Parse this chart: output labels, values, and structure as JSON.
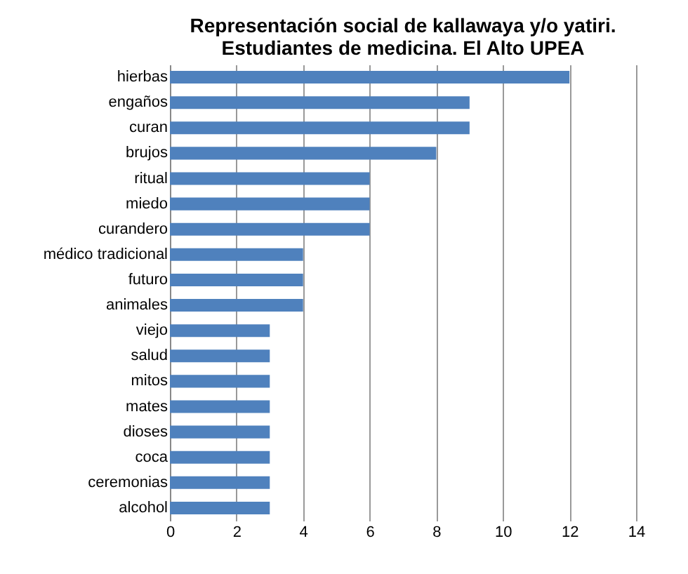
{
  "chart_data": {
    "type": "bar",
    "orientation": "horizontal",
    "title": [
      "Representación social de kallawaya y/o yatiri.",
      "Estudiantes de medicina. El Alto UPEA"
    ],
    "categories": [
      "hierbas",
      "engaños",
      "curan",
      "brujos",
      "ritual",
      "miedo",
      "curandero",
      "médico tradicional",
      "futuro",
      "animales",
      "viejo",
      "salud",
      "mitos",
      "mates",
      "dioses",
      "coca",
      "ceremonias",
      "alcohol"
    ],
    "values": [
      12,
      9,
      9,
      8,
      6,
      6,
      6,
      4,
      4,
      4,
      3,
      3,
      3,
      3,
      3,
      3,
      3,
      3
    ],
    "color": "#4f81bd",
    "xlim": [
      0,
      14
    ],
    "xticks": [
      0,
      2,
      4,
      6,
      8,
      10,
      12,
      14
    ],
    "grid": "x"
  }
}
